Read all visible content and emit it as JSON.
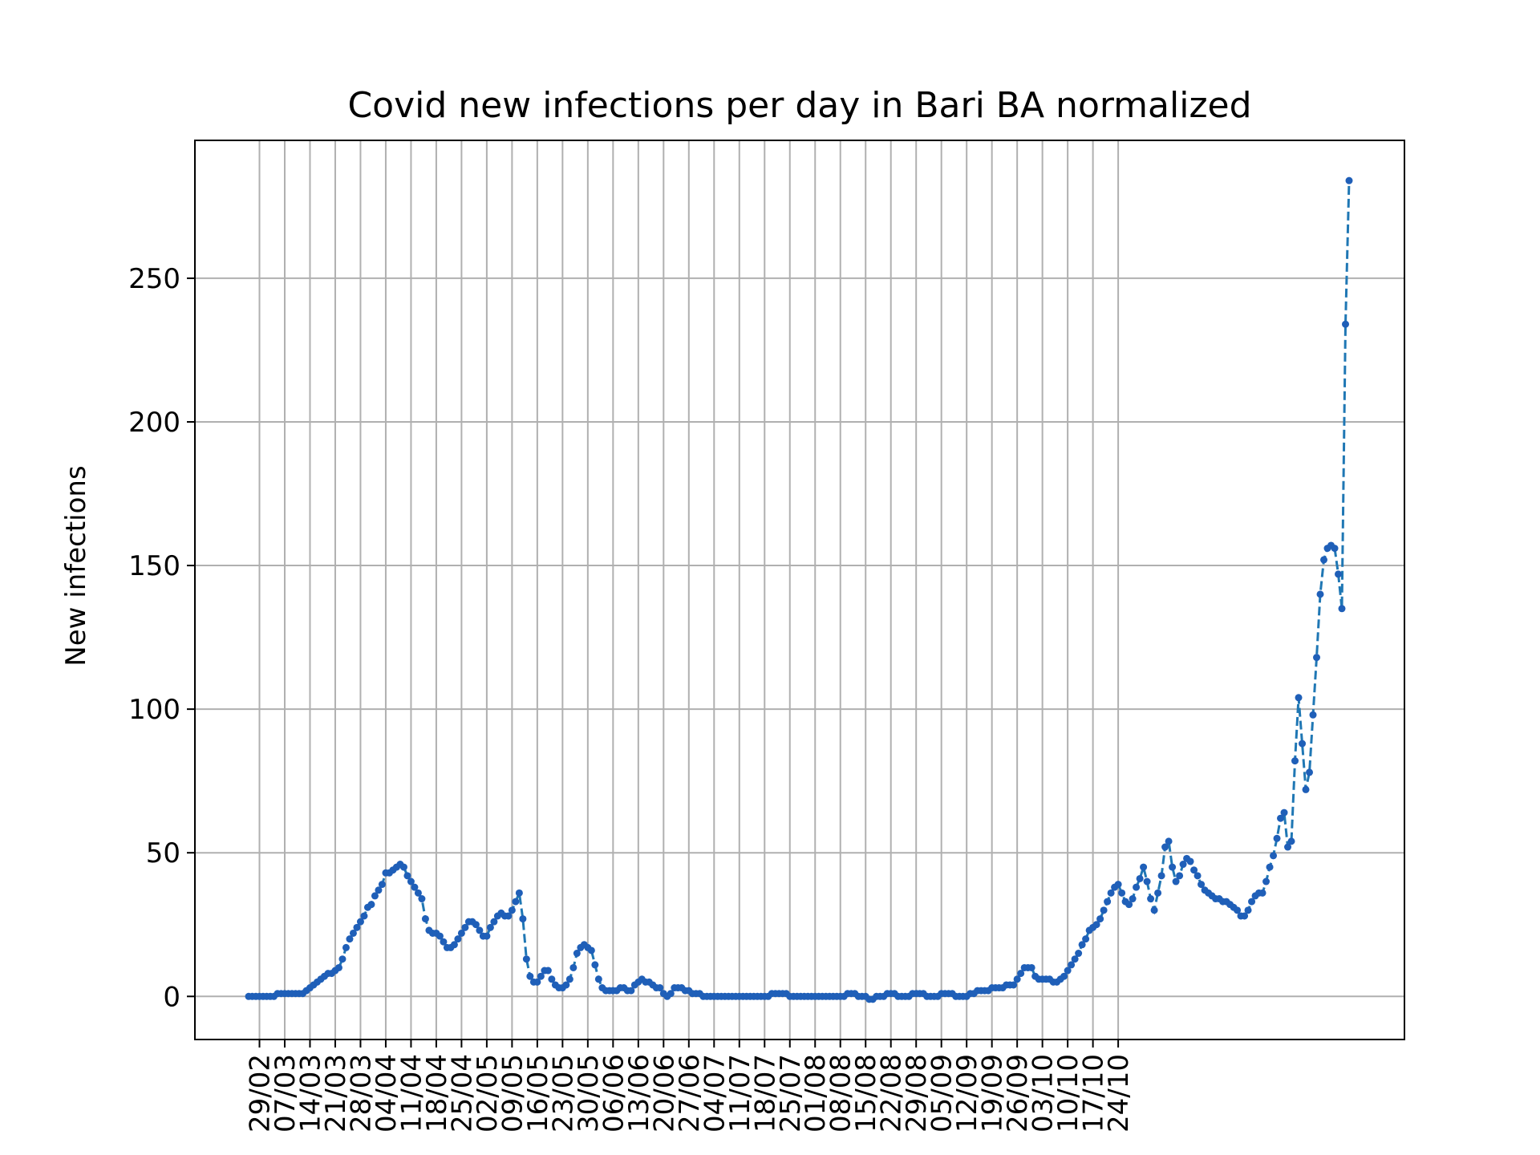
{
  "chart_data": {
    "type": "line",
    "title": "Covid new infections per day in Bari BA normalized",
    "xlabel": "",
    "ylabel": "New infections",
    "grid": true,
    "legend": "none",
    "x_tick_labels": [
      "29/02",
      "07/03",
      "14/03",
      "21/03",
      "28/03",
      "04/04",
      "11/04",
      "18/04",
      "25/04",
      "02/05",
      "09/05",
      "16/05",
      "23/05",
      "30/05",
      "06/06",
      "13/06",
      "20/06",
      "27/06",
      "04/07",
      "11/07",
      "18/07",
      "25/07",
      "01/08",
      "08/08",
      "15/08",
      "22/08",
      "29/08",
      "05/09",
      "12/09",
      "19/09",
      "26/09",
      "03/10",
      "10/10",
      "17/10",
      "24/10"
    ],
    "y_ticks": [
      0,
      50,
      100,
      150,
      200,
      250
    ],
    "ylim": [
      -15,
      298
    ],
    "series": [
      {
        "name": "",
        "color": "#1f77b4",
        "line_style": "dashed",
        "marker": "point",
        "start_date": "2020-02-26",
        "values": [
          0,
          0,
          0,
          0,
          0,
          0,
          0,
          0,
          1,
          1,
          1,
          1,
          1,
          1,
          1,
          1,
          2,
          3,
          4,
          5,
          6,
          7,
          8,
          8,
          9,
          10,
          13,
          17,
          20,
          22,
          24,
          26,
          28,
          31,
          32,
          35,
          37,
          39,
          43,
          43,
          44,
          45,
          46,
          45,
          42,
          40,
          38,
          36,
          34,
          27,
          23,
          22,
          22,
          21,
          19,
          17,
          17,
          18,
          20,
          22,
          24,
          26,
          26,
          25,
          23,
          21,
          21,
          24,
          26,
          28,
          29,
          28,
          28,
          30,
          33,
          36,
          27,
          13,
          7,
          5,
          5,
          7,
          9,
          9,
          6,
          4,
          3,
          3,
          4,
          6,
          10,
          15,
          17,
          18,
          17,
          16,
          11,
          6,
          3,
          2,
          2,
          2,
          2,
          3,
          3,
          2,
          2,
          4,
          5,
          6,
          5,
          5,
          4,
          3,
          3,
          1,
          0,
          1,
          3,
          3,
          3,
          2,
          2,
          1,
          1,
          1,
          0,
          0,
          0,
          0,
          0,
          0,
          0,
          0,
          0,
          0,
          0,
          0,
          0,
          0,
          0,
          0,
          0,
          0,
          0,
          1,
          1,
          1,
          1,
          1,
          0,
          0,
          0,
          0,
          0,
          0,
          0,
          0,
          0,
          0,
          0,
          0,
          0,
          0,
          0,
          0,
          1,
          1,
          1,
          0,
          0,
          0,
          -1,
          -1,
          0,
          0,
          0,
          1,
          1,
          1,
          0,
          0,
          0,
          0,
          1,
          1,
          1,
          1,
          0,
          0,
          0,
          0,
          1,
          1,
          1,
          1,
          0,
          0,
          0,
          0,
          1,
          1,
          2,
          2,
          2,
          2,
          3,
          3,
          3,
          3,
          4,
          4,
          4,
          6,
          8,
          10,
          10,
          10,
          7,
          6,
          6,
          6,
          6,
          5,
          5,
          6,
          7,
          9,
          11,
          13,
          15,
          18,
          20,
          23,
          24,
          25,
          27,
          30,
          33,
          36,
          38,
          39,
          36,
          33,
          32,
          34,
          38,
          41,
          45,
          40,
          34,
          30,
          36,
          42,
          52,
          54,
          45,
          40,
          42,
          46,
          48,
          47,
          44,
          42,
          39,
          37,
          36,
          35,
          34,
          34,
          33,
          33,
          32,
          31,
          30,
          28,
          28,
          30,
          33,
          35,
          36,
          36,
          40,
          45,
          49,
          55,
          62,
          64,
          52,
          54,
          82,
          104,
          88,
          72,
          78,
          98,
          118,
          140,
          152,
          156,
          157,
          156,
          147,
          135,
          234,
          284
        ]
      }
    ]
  }
}
